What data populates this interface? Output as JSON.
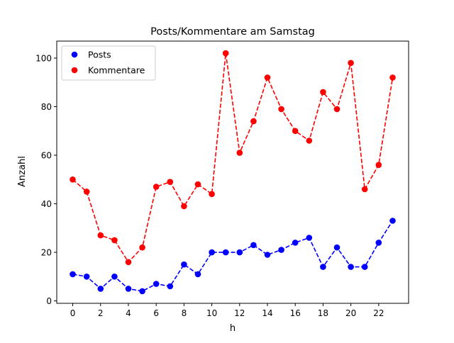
{
  "chart_data": {
    "type": "line",
    "title": "Posts/Kommentare am Samstag",
    "xlabel": "h",
    "ylabel": "Anzahl",
    "xlim": [
      -1.15,
      24.15
    ],
    "ylim": [
      -1.0,
      107.0
    ],
    "xticks": [
      0,
      2,
      4,
      6,
      8,
      10,
      12,
      14,
      16,
      18,
      20,
      22
    ],
    "yticks": [
      0,
      20,
      40,
      60,
      80,
      100
    ],
    "grid": false,
    "legend_position": "top-left",
    "x": [
      0,
      1,
      2,
      3,
      4,
      5,
      6,
      7,
      8,
      9,
      10,
      11,
      12,
      13,
      14,
      15,
      16,
      17,
      18,
      19,
      20,
      21,
      22,
      23
    ],
    "series": [
      {
        "name": "Posts",
        "color": "#0000ff",
        "linestyle": "dashed",
        "marker": "circle",
        "values": [
          11,
          10,
          5,
          10,
          5,
          4,
          7,
          6,
          15,
          11,
          20,
          20,
          20,
          23,
          19,
          21,
          24,
          26,
          14,
          22,
          14,
          14,
          24,
          33
        ]
      },
      {
        "name": "Kommentare",
        "color": "#ff0000",
        "linestyle": "dashed",
        "marker": "circle",
        "values": [
          50,
          45,
          27,
          25,
          16,
          22,
          47,
          49,
          39,
          48,
          44,
          102,
          61,
          74,
          92,
          79,
          70,
          66,
          86,
          79,
          98,
          46,
          56,
          92
        ]
      }
    ]
  }
}
